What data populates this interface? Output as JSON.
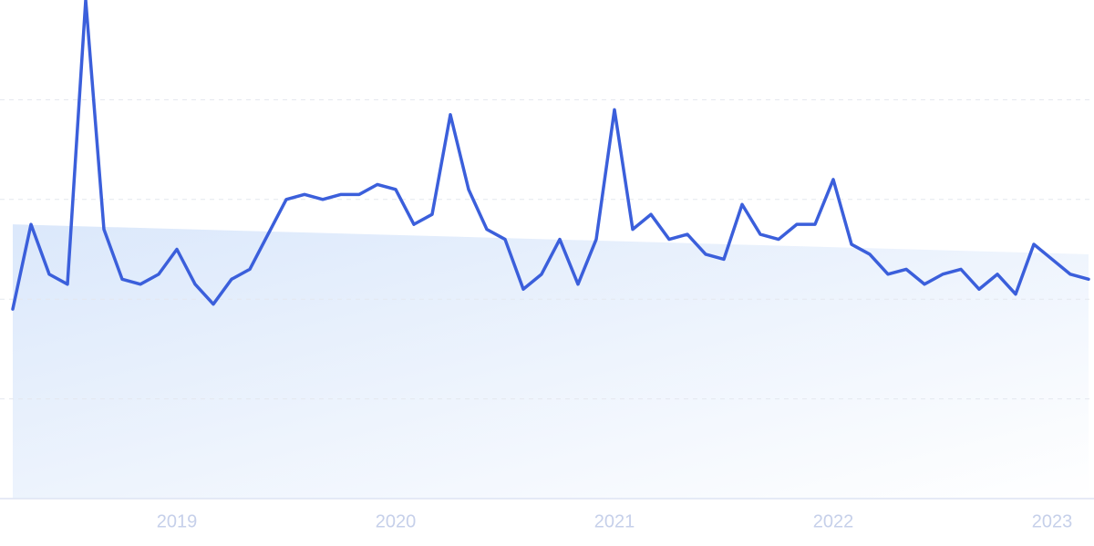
{
  "chart_data": {
    "type": "line",
    "categories": [
      null,
      null,
      null,
      null,
      null,
      null,
      null,
      null,
      null,
      "2019",
      null,
      null,
      null,
      null,
      null,
      null,
      null,
      null,
      null,
      null,
      null,
      "2020",
      null,
      null,
      null,
      null,
      null,
      null,
      null,
      null,
      null,
      null,
      null,
      "2021",
      null,
      null,
      null,
      null,
      null,
      null,
      null,
      null,
      null,
      null,
      null,
      "2022",
      null,
      null,
      null,
      null,
      null,
      null,
      null,
      null,
      null,
      null,
      null,
      "2023",
      null,
      null
    ],
    "series": [
      {
        "color": "#3b5fdb",
        "values": [
          38,
          55,
          45,
          43,
          100,
          54,
          44,
          43,
          45,
          50,
          43,
          39,
          44,
          46,
          53,
          60,
          61,
          60,
          61,
          61,
          63,
          62,
          55,
          57,
          77,
          62,
          54,
          52,
          42,
          45,
          52,
          43,
          52,
          78,
          54,
          57,
          52,
          53,
          49,
          48,
          59,
          53,
          52,
          55,
          55,
          64,
          51,
          49,
          45,
          46,
          43,
          45,
          46,
          42,
          45,
          41,
          51,
          48,
          45,
          44
        ]
      }
    ],
    "trend": {
      "color": "#dbe8fb",
      "values": [
        55,
        49
      ]
    },
    "ylim": [
      0,
      100
    ],
    "yticks": [
      0,
      20,
      40,
      60,
      80
    ],
    "grid": true
  }
}
